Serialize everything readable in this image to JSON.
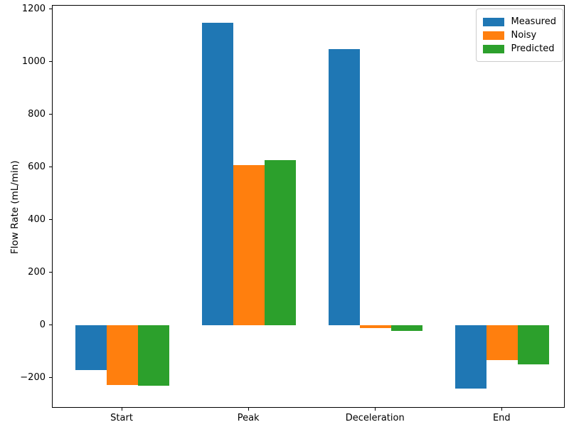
{
  "figure": {
    "background": "#ffffff",
    "frame_color": "#000000"
  },
  "chart_data": {
    "type": "bar",
    "title": "",
    "xlabel": "",
    "ylabel": "Flow Rate (mL/min)",
    "categories": [
      "Start",
      "Peak",
      "Deceleration",
      "End"
    ],
    "series": [
      {
        "name": "Measured",
        "color": "#1f77b4",
        "values": [
          -170,
          1150,
          1050,
          -240
        ]
      },
      {
        "name": "Noisy",
        "color": "#ff7f0e",
        "values": [
          -225,
          610,
          -10,
          -132
        ]
      },
      {
        "name": "Predicted",
        "color": "#2ca02c",
        "values": [
          -228,
          628,
          -20,
          -148
        ]
      }
    ],
    "yticks": [
      -200,
      0,
      200,
      400,
      600,
      800,
      1000,
      1200
    ],
    "ylim": [
      -315,
      1215
    ],
    "grid": false,
    "legend": {
      "position": "upper right",
      "entries": [
        "Measured",
        "Noisy",
        "Predicted"
      ]
    }
  }
}
